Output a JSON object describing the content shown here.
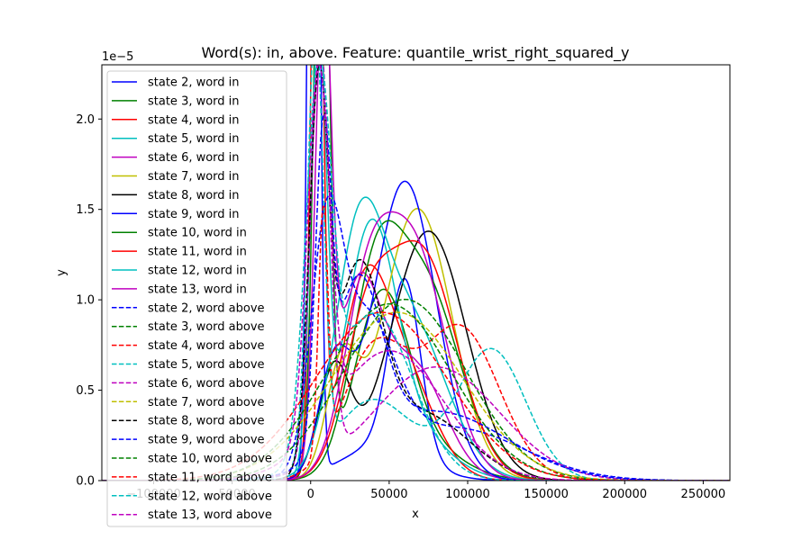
{
  "chart_data": {
    "type": "line",
    "title": "Word(s): in, above. Feature: quantile_wrist_right_squared_y",
    "xlabel": "x",
    "ylabel": "y",
    "y_offset_label": "1e−5",
    "xlim": [
      -133000,
      267000
    ],
    "ylim": [
      0,
      2.3
    ],
    "x_ticks": [
      {
        "value": -100000,
        "label": "−100000"
      },
      {
        "value": -50000,
        "label": "−50000"
      },
      {
        "value": 0,
        "label": "0"
      },
      {
        "value": 50000,
        "label": "50000"
      },
      {
        "value": 100000,
        "label": "100000"
      },
      {
        "value": 150000,
        "label": "150000"
      },
      {
        "value": 200000,
        "label": "200000"
      },
      {
        "value": 250000,
        "label": "250000"
      }
    ],
    "y_ticks": [
      {
        "value": 0,
        "label": "0.0"
      },
      {
        "value": 0.5,
        "label": "0.5"
      },
      {
        "value": 1.0,
        "label": "1.0"
      },
      {
        "value": 1.5,
        "label": "1.5"
      },
      {
        "value": 2.0,
        "label": "2.0"
      }
    ],
    "grid": false,
    "legend_position": "upper-left",
    "series": [
      {
        "name": "state 2, word in",
        "color": "#0000ff",
        "style": "solid",
        "components": [
          [
            0.55,
            2000,
            3000
          ],
          [
            0.24,
            60000,
            10000
          ],
          [
            0.12,
            45000,
            25000
          ]
        ]
      },
      {
        "name": "state 3, word in",
        "color": "#008000",
        "style": "solid",
        "components": [
          [
            0.45,
            7000,
            4500
          ],
          [
            0.4,
            45000,
            17000
          ],
          [
            0.12,
            70000,
            25000
          ]
        ]
      },
      {
        "name": "state 4, word in",
        "color": "#ff0000",
        "style": "solid",
        "components": [
          [
            0.35,
            4000,
            3500
          ],
          [
            0.33,
            33000,
            15000
          ],
          [
            0.3,
            58000,
            20000
          ]
        ]
      },
      {
        "name": "state 5, word in",
        "color": "#00bfbf",
        "style": "solid",
        "components": [
          [
            0.3,
            5000,
            5000
          ],
          [
            0.5,
            38000,
            16000
          ],
          [
            0.18,
            60000,
            25000
          ]
        ]
      },
      {
        "name": "state 6, word in",
        "color": "#bf00bf",
        "style": "solid",
        "components": [
          [
            0.32,
            8000,
            5000
          ],
          [
            0.35,
            30000,
            14000
          ],
          [
            0.32,
            65000,
            20000
          ]
        ]
      },
      {
        "name": "state 7, word in",
        "color": "#bfbf00",
        "style": "solid",
        "components": [
          [
            0.15,
            20000,
            10000
          ],
          [
            0.83,
            68000,
            22000
          ]
        ]
      },
      {
        "name": "state 8, word in",
        "color": "#000000",
        "style": "solid",
        "components": [
          [
            0.15,
            15000,
            10000
          ],
          [
            0.83,
            75000,
            24000
          ]
        ]
      },
      {
        "name": "state 9, word in",
        "color": "#0000ff",
        "style": "solid",
        "components": [
          [
            0.15,
            15000,
            10000
          ],
          [
            0.83,
            60000,
            20000
          ]
        ]
      },
      {
        "name": "state 10, word in",
        "color": "#008000",
        "style": "solid",
        "components": [
          [
            0.3,
            40000,
            15000
          ],
          [
            0.68,
            70000,
            24000
          ]
        ]
      },
      {
        "name": "state 11, word in",
        "color": "#ff0000",
        "style": "solid",
        "components": [
          [
            0.25,
            35000,
            15000
          ],
          [
            0.73,
            70000,
            23000
          ]
        ]
      },
      {
        "name": "state 12, word in",
        "color": "#00bfbf",
        "style": "solid",
        "components": [
          [
            0.4,
            30000,
            15000
          ],
          [
            0.58,
            60000,
            25000
          ]
        ]
      },
      {
        "name": "state 13, word in",
        "color": "#bf00bf",
        "style": "solid",
        "components": [
          [
            0.3,
            35000,
            15000
          ],
          [
            0.68,
            65000,
            21000
          ]
        ]
      },
      {
        "name": "state 2, word above",
        "color": "#0000ff",
        "style": "dashed",
        "components": [
          [
            0.3,
            10000,
            10000
          ],
          [
            0.35,
            35000,
            18000
          ],
          [
            0.33,
            90000,
            45000
          ]
        ]
      },
      {
        "name": "state 3, word above",
        "color": "#008000",
        "style": "dashed",
        "components": [
          [
            0.98,
            60000,
            39000
          ]
        ]
      },
      {
        "name": "state 4, word above",
        "color": "#ff0000",
        "style": "dashed",
        "components": [
          [
            0.1,
            8000,
            3000
          ],
          [
            0.35,
            40000,
            20000
          ],
          [
            0.53,
            95000,
            25000
          ]
        ]
      },
      {
        "name": "state 5, word above",
        "color": "#00bfbf",
        "style": "dashed",
        "components": [
          [
            0.3,
            3000,
            5000
          ],
          [
            0.28,
            40000,
            25000
          ],
          [
            0.4,
            115000,
            22000
          ]
        ]
      },
      {
        "name": "state 6, word above",
        "color": "#bf00bf",
        "style": "dashed",
        "components": [
          [
            0.35,
            6000,
            6000
          ],
          [
            0.63,
            80000,
            40000
          ]
        ]
      },
      {
        "name": "state 7, word above",
        "color": "#bfbf00",
        "style": "dashed",
        "components": [
          [
            0.98,
            55000,
            42000
          ]
        ]
      },
      {
        "name": "state 8, word above",
        "color": "#000000",
        "style": "dashed",
        "components": [
          [
            0.3,
            5000,
            6000
          ],
          [
            0.4,
            30000,
            15000
          ],
          [
            0.28,
            70000,
            30000
          ]
        ]
      },
      {
        "name": "state 9, word above",
        "color": "#0000ff",
        "style": "dashed",
        "components": [
          [
            0.2,
            8000,
            5000
          ],
          [
            0.35,
            30000,
            15000
          ],
          [
            0.43,
            80000,
            45000
          ]
        ]
      },
      {
        "name": "state 10, word above",
        "color": "#008000",
        "style": "dashed",
        "components": [
          [
            0.98,
            50000,
            40000
          ]
        ]
      },
      {
        "name": "state 11, word above",
        "color": "#ff0000",
        "style": "dashed",
        "components": [
          [
            0.98,
            45000,
            42000
          ]
        ]
      },
      {
        "name": "state 12, word above",
        "color": "#00bfbf",
        "style": "dashed",
        "components": [
          [
            0.4,
            5000,
            8000
          ],
          [
            0.58,
            40000,
            25000
          ]
        ]
      },
      {
        "name": "state 13, word above",
        "color": "#bf00bf",
        "style": "dashed",
        "components": [
          [
            0.35,
            5000,
            7000
          ],
          [
            0.63,
            50000,
            35000
          ]
        ]
      }
    ]
  }
}
